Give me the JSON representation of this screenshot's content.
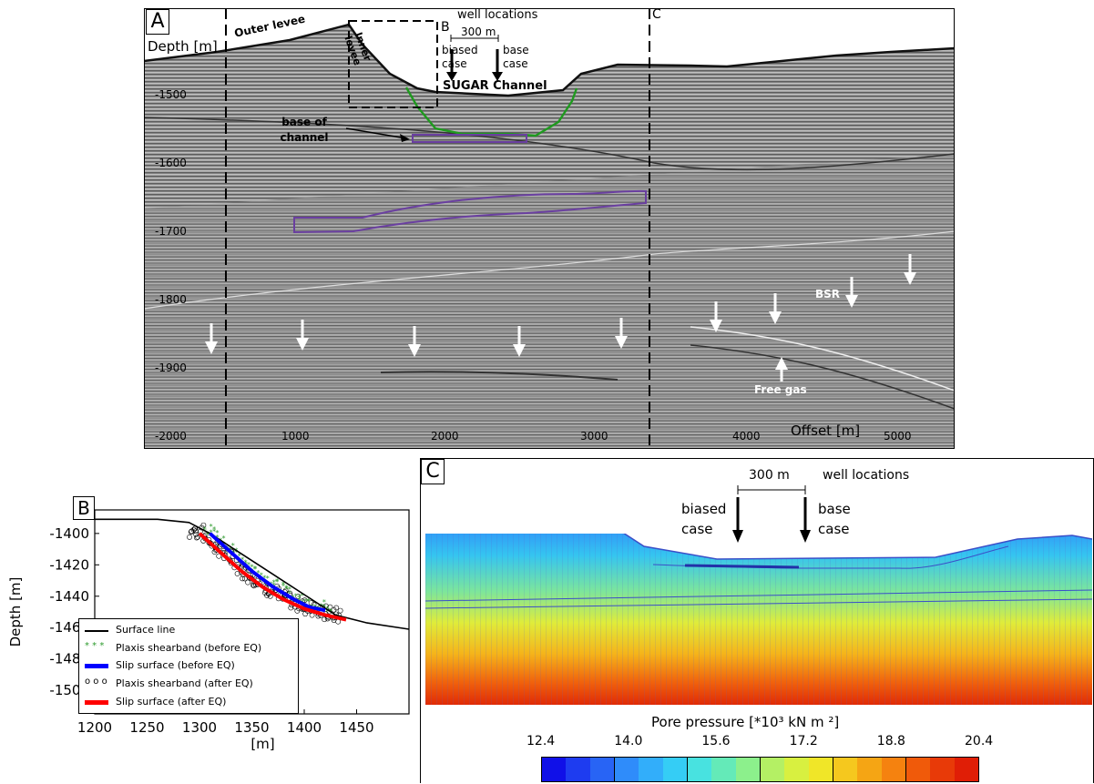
{
  "panel_a": {
    "letter": "A",
    "depth_label": "Depth [m]",
    "offset_label": "Offset [m]",
    "depth_ticks": [
      "-1500",
      "-1600",
      "-1700",
      "-1800",
      "-1900",
      "-2000"
    ],
    "offset_ticks": [
      "1000",
      "2000",
      "3000",
      "4000",
      "5000"
    ],
    "labels": {
      "outer_levee": "Outer levee",
      "inner_levee": "Inner levee",
      "well_locations": "well locations",
      "scale": "300 m",
      "biased": "biased case",
      "base": "base case",
      "channel": "SUGAR Channel",
      "base_of_channel": "base of channel",
      "bsr": "BSR",
      "free_gas": "Free gas",
      "marker_b": "B",
      "marker_c": "C"
    }
  },
  "panel_b": {
    "letter": "B",
    "legend": [
      "Surface line",
      "Plaxis shearband (before EQ)",
      "Slip surface (before EQ)",
      "Plaxis shearband (after EQ)",
      "Slip surface (after EQ)"
    ],
    "colors": {
      "surface": "#000000",
      "shear_before": "#2e9b2e",
      "slip_before": "#0000ff",
      "shear_after": "#000000",
      "slip_after": "#ff0000"
    }
  },
  "panel_c": {
    "letter": "C",
    "scale": "300 m",
    "well_locations": "well locations",
    "biased": "biased case",
    "base": "base case",
    "colorbar_title": "Pore pressure [*10³ kN m ²]",
    "colorbar_ticks": [
      "12.4",
      "14.0",
      "15.6",
      "17.2",
      "18.8",
      "20.4"
    ],
    "colorbar_colors": [
      "#1010e8",
      "#1e3cf0",
      "#2864f5",
      "#2f8cfa",
      "#32aefa",
      "#35cdf5",
      "#48e2e0",
      "#64eab8",
      "#8cf08c",
      "#b4f064",
      "#d8f040",
      "#f0e628",
      "#f5c81e",
      "#f5a514",
      "#f5820f",
      "#f05a0a",
      "#e83a08",
      "#e01e06"
    ]
  },
  "chart_data": [
    {
      "type": "line",
      "panel": "B",
      "xlabel": "[m]",
      "ylabel": "Depth [m]",
      "xlim": [
        1200,
        1500
      ],
      "ylim": [
        -1515,
        -1385
      ],
      "xticks": [
        1200,
        1250,
        1300,
        1350,
        1400,
        1450
      ],
      "yticks": [
        -1400,
        -1420,
        -1440,
        -1460,
        -1480,
        -1500
      ],
      "series": [
        {
          "name": "Surface line",
          "x": [
            1200,
            1260,
            1290,
            1310,
            1340,
            1370,
            1400,
            1430,
            1460,
            1500
          ],
          "y": [
            -1391,
            -1391,
            -1393,
            -1400,
            -1413,
            -1426,
            -1439,
            -1452,
            -1457,
            -1461
          ]
        },
        {
          "name": "Slip surface (before EQ)",
          "x": [
            1310,
            1330,
            1350,
            1370,
            1390,
            1405,
            1420
          ],
          "y": [
            -1400,
            -1412,
            -1424,
            -1434,
            -1442,
            -1447,
            -1449
          ]
        },
        {
          "name": "Slip surface (after EQ)",
          "x": [
            1300,
            1320,
            1340,
            1360,
            1380,
            1400,
            1420,
            1440
          ],
          "y": [
            -1400,
            -1412,
            -1424,
            -1434,
            -1442,
            -1448,
            -1452,
            -1455
          ]
        }
      ]
    }
  ]
}
